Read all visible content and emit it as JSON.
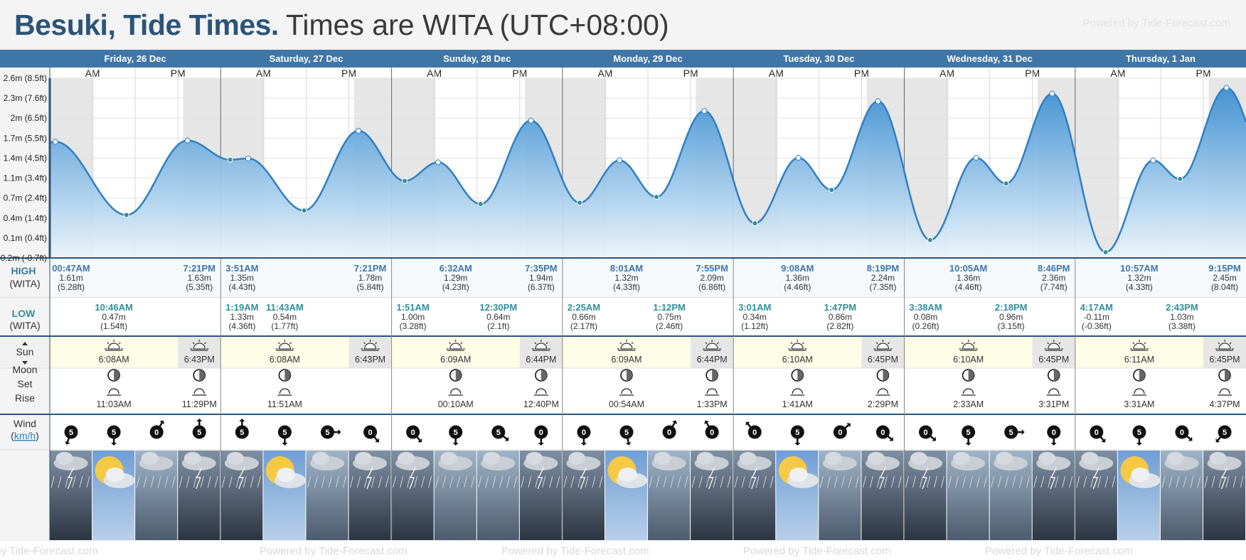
{
  "header": {
    "place": "Besuki, Tide Times.",
    "timezone_note": "Times are WITA (UTC+08:00)",
    "powered": "Powered by Tide-Forecast.com"
  },
  "colors": {
    "header_band": "#3f76a8",
    "tide_line": "#2f7fc4",
    "tide_fill_top": "#3c8fd2",
    "tide_fill_bottom": "#eaf4fb",
    "high_label": "#3f76a8",
    "low_label": "#2f8f9c",
    "night_shade": "#e6e6e6",
    "day_sun_band": "#fdfde8"
  },
  "days": [
    {
      "label": "Friday, 26 Dec"
    },
    {
      "label": "Saturday, 27 Dec"
    },
    {
      "label": "Sunday, 28 Dec"
    },
    {
      "label": "Monday, 29 Dec"
    },
    {
      "label": "Tuesday, 30 Dec"
    },
    {
      "label": "Wednesday, 31 Dec"
    },
    {
      "label": "Thursday, 1 Jan"
    }
  ],
  "ampm": {
    "am": "AM",
    "pm": "PM"
  },
  "row_labels": {
    "high_1": "HIGH",
    "high_2": "(WITA)",
    "low_1": "LOW",
    "low_2": "(WITA)",
    "sun": "Sun",
    "moon": "Moon",
    "set": "Set",
    "rise": "Rise",
    "wind": "Wind",
    "wind_unit": "km/h"
  },
  "y_axis_labels": [
    "2.6m (8.5ft)",
    "2.3m (7.6ft)",
    "2m (6.5ft)",
    "1.7m (5.5ft)",
    "1.4m (4.5ft)",
    "1.1m (3.4ft)",
    "0.7m (2.4ft)",
    "0.4m (1.4ft)",
    "0.1m (0.4ft)",
    "-0.2m (-0.7ft)"
  ],
  "chart_data": {
    "type": "area",
    "title": "Besuki, Tide Times.",
    "xlabel": "",
    "ylabel": "",
    "ylim": [
      -0.2,
      2.6
    ],
    "y_unit": "m",
    "start": "Friday, 26 Dec 00:00",
    "series": [
      {
        "values": [
          {
            "day": 0,
            "time": "00:47AM",
            "hour": 0.78,
            "height": 1.61,
            "type": "high"
          },
          {
            "day": 0,
            "time": "10:46AM",
            "hour": 10.77,
            "height": 0.47,
            "type": "low"
          },
          {
            "day": 0,
            "time": "7:21PM",
            "hour": 19.35,
            "height": 1.63,
            "type": "high"
          },
          {
            "day": 1,
            "time": "1:19AM",
            "hour": 1.32,
            "height": 1.33,
            "type": "low"
          },
          {
            "day": 1,
            "time": "3:51AM",
            "hour": 3.85,
            "height": 1.35,
            "type": "high"
          },
          {
            "day": 1,
            "time": "11:43AM",
            "hour": 11.72,
            "height": 0.54,
            "type": "low"
          },
          {
            "day": 1,
            "time": "7:21PM",
            "hour": 19.35,
            "height": 1.78,
            "type": "high"
          },
          {
            "day": 2,
            "time": "1:51AM",
            "hour": 1.85,
            "height": 1.0,
            "type": "low"
          },
          {
            "day": 2,
            "time": "6:32AM",
            "hour": 6.53,
            "height": 1.29,
            "type": "high"
          },
          {
            "day": 2,
            "time": "12:30PM",
            "hour": 12.5,
            "height": 0.64,
            "type": "low"
          },
          {
            "day": 2,
            "time": "7:35PM",
            "hour": 19.58,
            "height": 1.94,
            "type": "high"
          },
          {
            "day": 3,
            "time": "2:25AM",
            "hour": 2.42,
            "height": 0.66,
            "type": "low"
          },
          {
            "day": 3,
            "time": "8:01AM",
            "hour": 8.02,
            "height": 1.32,
            "type": "high"
          },
          {
            "day": 3,
            "time": "1:12PM",
            "hour": 13.2,
            "height": 0.75,
            "type": "low"
          },
          {
            "day": 3,
            "time": "7:55PM",
            "hour": 19.92,
            "height": 2.09,
            "type": "high"
          },
          {
            "day": 4,
            "time": "3:01AM",
            "hour": 3.02,
            "height": 0.34,
            "type": "low"
          },
          {
            "day": 4,
            "time": "9:08AM",
            "hour": 9.13,
            "height": 1.36,
            "type": "high"
          },
          {
            "day": 4,
            "time": "1:47PM",
            "hour": 13.78,
            "height": 0.86,
            "type": "low"
          },
          {
            "day": 4,
            "time": "8:19PM",
            "hour": 20.32,
            "height": 2.24,
            "type": "high"
          },
          {
            "day": 5,
            "time": "3:38AM",
            "hour": 3.63,
            "height": 0.08,
            "type": "low"
          },
          {
            "day": 5,
            "time": "10:05AM",
            "hour": 10.08,
            "height": 1.36,
            "type": "high"
          },
          {
            "day": 5,
            "time": "2:18PM",
            "hour": 14.3,
            "height": 0.96,
            "type": "low"
          },
          {
            "day": 5,
            "time": "8:46PM",
            "hour": 20.77,
            "height": 2.36,
            "type": "high"
          },
          {
            "day": 6,
            "time": "4:17AM",
            "hour": 4.28,
            "height": -0.11,
            "type": "low"
          },
          {
            "day": 6,
            "time": "10:57AM",
            "hour": 10.95,
            "height": 1.32,
            "type": "high"
          },
          {
            "day": 6,
            "time": "2:43PM",
            "hour": 14.72,
            "height": 1.03,
            "type": "low"
          },
          {
            "day": 6,
            "time": "9:15PM",
            "hour": 21.25,
            "height": 2.45,
            "type": "high"
          }
        ]
      }
    ],
    "sunrise_hour": [
      6.13,
      6.13,
      6.15,
      6.15,
      6.17,
      6.17,
      6.18
    ],
    "sunset_hour": [
      18.72,
      18.72,
      18.73,
      18.73,
      18.75,
      18.75,
      18.75
    ]
  },
  "high_tides": [
    {
      "day": 0,
      "time": "00:47AM",
      "m": "1.61m",
      "ft": "(5.28ft)"
    },
    {
      "day": 0,
      "time": "7:21PM",
      "m": "1.63m",
      "ft": "(5.35ft)"
    },
    {
      "day": 1,
      "time": "3:51AM",
      "m": "1.35m",
      "ft": "(4.43ft)"
    },
    {
      "day": 1,
      "time": "7:21PM",
      "m": "1.78m",
      "ft": "(5.84ft)"
    },
    {
      "day": 2,
      "time": "6:32AM",
      "m": "1.29m",
      "ft": "(4.23ft)"
    },
    {
      "day": 2,
      "time": "7:35PM",
      "m": "1.94m",
      "ft": "(6.37ft)"
    },
    {
      "day": 3,
      "time": "8:01AM",
      "m": "1.32m",
      "ft": "(4.33ft)"
    },
    {
      "day": 3,
      "time": "7:55PM",
      "m": "2.09m",
      "ft": "(6.86ft)"
    },
    {
      "day": 4,
      "time": "9:08AM",
      "m": "1.36m",
      "ft": "(4.46ft)"
    },
    {
      "day": 4,
      "time": "8:19PM",
      "m": "2.24m",
      "ft": "(7.35ft)"
    },
    {
      "day": 5,
      "time": "10:05AM",
      "m": "1.36m",
      "ft": "(4.46ft)"
    },
    {
      "day": 5,
      "time": "8:46PM",
      "m": "2.36m",
      "ft": "(7.74ft)"
    },
    {
      "day": 6,
      "time": "10:57AM",
      "m": "1.32m",
      "ft": "(4.33ft)"
    },
    {
      "day": 6,
      "time": "9:15PM",
      "m": "2.45m",
      "ft": "(8.04ft)"
    }
  ],
  "low_tides": [
    {
      "day": 0,
      "time": "10:46AM",
      "m": "0.47m",
      "ft": "(1.54ft)"
    },
    {
      "day": 1,
      "time": "1:19AM",
      "m": "1.33m",
      "ft": "(4.36ft)"
    },
    {
      "day": 1,
      "time": "11:43AM",
      "m": "0.54m",
      "ft": "(1.77ft)"
    },
    {
      "day": 2,
      "time": "1:51AM",
      "m": "1.00m",
      "ft": "(3.28ft)"
    },
    {
      "day": 2,
      "time": "12:30PM",
      "m": "0.64m",
      "ft": "(2.1ft)"
    },
    {
      "day": 3,
      "time": "2:25AM",
      "m": "0.66m",
      "ft": "(2.17ft)"
    },
    {
      "day": 3,
      "time": "1:12PM",
      "m": "0.75m",
      "ft": "(2.46ft)"
    },
    {
      "day": 4,
      "time": "3:01AM",
      "m": "0.34m",
      "ft": "(1.12ft)"
    },
    {
      "day": 4,
      "time": "1:47PM",
      "m": "0.86m",
      "ft": "(2.82ft)"
    },
    {
      "day": 5,
      "time": "3:38AM",
      "m": "0.08m",
      "ft": "(0.26ft)"
    },
    {
      "day": 5,
      "time": "2:18PM",
      "m": "0.96m",
      "ft": "(3.15ft)"
    },
    {
      "day": 6,
      "time": "4:17AM",
      "m": "-0.11m",
      "ft": "(-0.36ft)"
    },
    {
      "day": 6,
      "time": "2:43PM",
      "m": "1.03m",
      "ft": "(3.38ft)"
    }
  ],
  "sun": [
    {
      "rise": "6:08AM",
      "set": "6:43PM"
    },
    {
      "rise": "6:08AM",
      "set": "6:43PM"
    },
    {
      "rise": "6:09AM",
      "set": "6:44PM"
    },
    {
      "rise": "6:09AM",
      "set": "6:44PM"
    },
    {
      "rise": "6:10AM",
      "set": "6:45PM"
    },
    {
      "rise": "6:10AM",
      "set": "6:45PM"
    },
    {
      "rise": "6:11AM",
      "set": "6:45PM"
    }
  ],
  "moon": [
    {
      "set": "11:03AM",
      "rise": "11:29PM"
    },
    {
      "set": "11:51AM",
      "rise": ""
    },
    {
      "set": "00:10AM",
      "rise": "12:40PM"
    },
    {
      "set": "00:54AM",
      "rise": "1:33PM"
    },
    {
      "set": "1:41AM",
      "rise": "2:29PM"
    },
    {
      "set": "2:33AM",
      "rise": "3:31PM"
    },
    {
      "set": "3:31AM",
      "rise": "4:37PM"
    }
  ],
  "wind": [
    {
      "speed": "5",
      "dir": 200
    },
    {
      "speed": "5",
      "dir": 180
    },
    {
      "speed": "0",
      "dir": 30
    },
    {
      "speed": "5",
      "dir": 0
    },
    {
      "speed": "5",
      "dir": 0
    },
    {
      "speed": "5",
      "dir": 180
    },
    {
      "speed": "5",
      "dir": 90
    },
    {
      "speed": "0",
      "dir": 140
    },
    {
      "speed": "0",
      "dir": 140
    },
    {
      "speed": "5",
      "dir": 180
    },
    {
      "speed": "5",
      "dir": 130
    },
    {
      "speed": "0",
      "dir": 180
    },
    {
      "speed": "0",
      "dir": 180
    },
    {
      "speed": "5",
      "dir": 170
    },
    {
      "speed": "0",
      "dir": 30
    },
    {
      "speed": "0",
      "dir": 330
    },
    {
      "speed": "0",
      "dir": 320
    },
    {
      "speed": "5",
      "dir": 180
    },
    {
      "speed": "0",
      "dir": 50
    },
    {
      "speed": "0",
      "dir": 130
    },
    {
      "speed": "0",
      "dir": 130
    },
    {
      "speed": "5",
      "dir": 180
    },
    {
      "speed": "5",
      "dir": 90
    },
    {
      "speed": "0",
      "dir": 180
    },
    {
      "speed": "0",
      "dir": 140
    },
    {
      "speed": "5",
      "dir": 180
    },
    {
      "speed": "0",
      "dir": 130
    },
    {
      "speed": "5",
      "dir": 220
    }
  ],
  "weather": [
    "storm-icon",
    "sun-cloud-icon",
    "rain-icon",
    "storm-icon",
    "storm-icon",
    "sun-cloud-icon",
    "rain-icon",
    "storm-icon",
    "storm-icon",
    "rain-icon",
    "rain-icon",
    "storm-icon",
    "storm-icon",
    "sun-cloud-icon",
    "rain-icon",
    "storm-icon",
    "storm-icon",
    "sun-cloud-icon",
    "rain-icon",
    "storm-icon",
    "storm-icon",
    "rain-icon",
    "rain-icon",
    "storm-icon",
    "storm-icon",
    "sun-cloud-icon",
    "rain-icon",
    "storm-icon"
  ]
}
